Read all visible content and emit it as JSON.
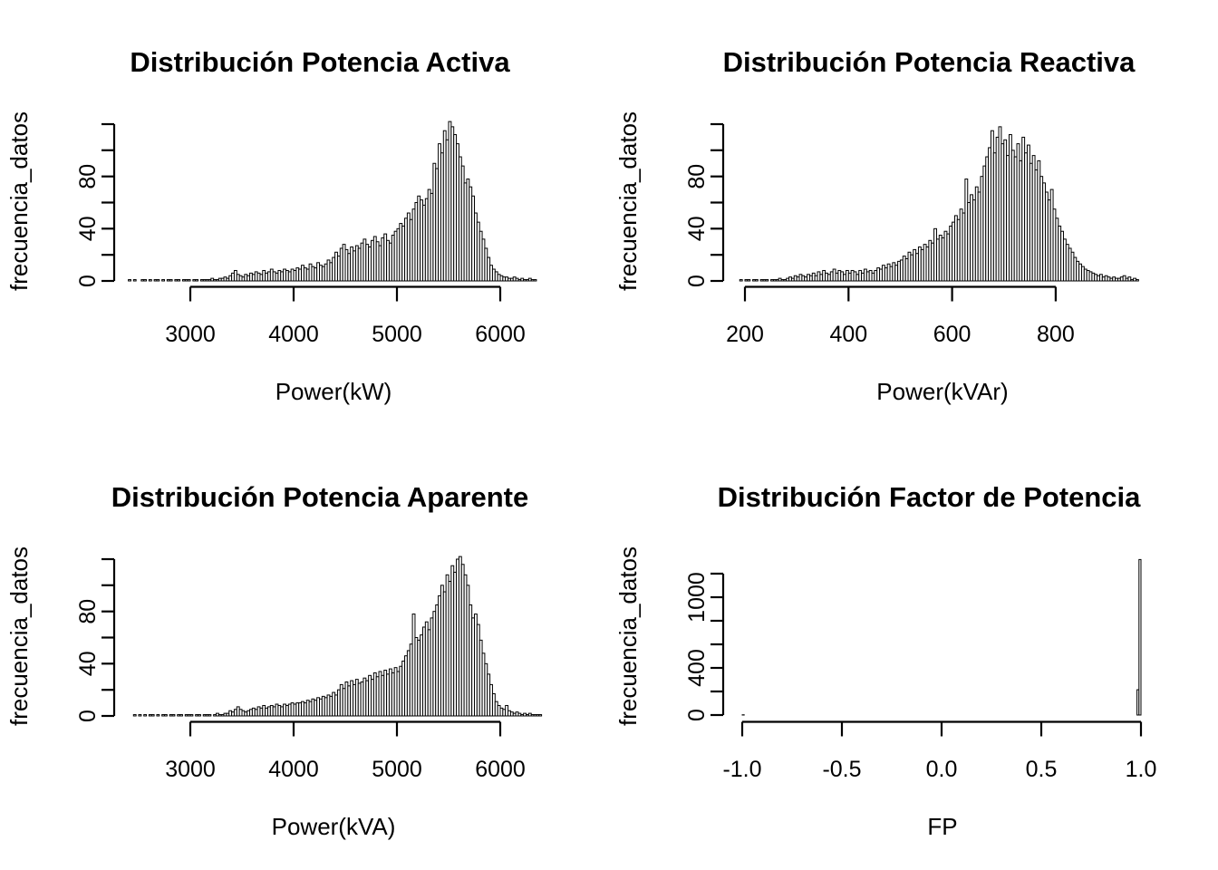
{
  "app": {
    "kind": "r-plot-figure",
    "background": "#ffffff",
    "foreground": "#000000",
    "grid_rows": 2,
    "grid_cols": 2
  },
  "chart_data": [
    {
      "type": "bar",
      "variant": "histogram",
      "title": "Distribución Potencia Activa",
      "xlabel": "Power(kW)",
      "ylabel": "frecuencia_datos",
      "x_ticks": [
        3000,
        4000,
        5000,
        6000
      ],
      "x_tick_labels": [
        "3000",
        "4000",
        "5000",
        "6000"
      ],
      "y_ticks": [
        0,
        20,
        40,
        60,
        80,
        100,
        120
      ],
      "y_tick_labels": [
        "0",
        "",
        "40",
        "",
        "80",
        "",
        ""
      ],
      "xlim": [
        2400,
        6350
      ],
      "ylim": [
        0,
        122
      ],
      "grid": false,
      "legend": false,
      "bin_start": 2400,
      "bin_width": 25,
      "heights": [
        1,
        0,
        1,
        0,
        0,
        1,
        1,
        0,
        1,
        0,
        1,
        1,
        0,
        1,
        0,
        1,
        1,
        0,
        1,
        1,
        0,
        1,
        1,
        1,
        0,
        1,
        1,
        0,
        1,
        1,
        1,
        1,
        2,
        1,
        1,
        2,
        2,
        3,
        2,
        4,
        6,
        8,
        5,
        4,
        3,
        5,
        4,
        6,
        5,
        7,
        6,
        5,
        8,
        6,
        7,
        9,
        7,
        6,
        8,
        7,
        9,
        8,
        7,
        9,
        8,
        10,
        9,
        12,
        10,
        9,
        13,
        11,
        10,
        14,
        12,
        11,
        13,
        16,
        14,
        18,
        22,
        19,
        25,
        28,
        24,
        21,
        26,
        23,
        27,
        25,
        29,
        32,
        28,
        26,
        31,
        34,
        30,
        27,
        33,
        36,
        31,
        29,
        35,
        38,
        40,
        44,
        42,
        48,
        52,
        47,
        55,
        60,
        65,
        62,
        58,
        63,
        70,
        67,
        90,
        86,
        105,
        98,
        115,
        108,
        122,
        118,
        112,
        105,
        95,
        88,
        75,
        78,
        72,
        65,
        52,
        45,
        38,
        32,
        25,
        18,
        12,
        9,
        7,
        5,
        4,
        3,
        3,
        2,
        2,
        3,
        2,
        1,
        2,
        1,
        1,
        2,
        1,
        1
      ]
    },
    {
      "type": "bar",
      "variant": "histogram",
      "title": "Distribución Potencia Reactiva",
      "xlabel": "Power(kVAr)",
      "ylabel": "frecuencia_datos",
      "x_ticks": [
        200,
        400,
        600,
        800
      ],
      "x_tick_labels": [
        "200",
        "400",
        "600",
        "800"
      ],
      "y_ticks": [
        0,
        20,
        40,
        60,
        80,
        100,
        120
      ],
      "y_tick_labels": [
        "0",
        "",
        "40",
        "",
        "80",
        "",
        ""
      ],
      "xlim": [
        190,
        960
      ],
      "ylim": [
        0,
        118
      ],
      "grid": false,
      "legend": false,
      "bin_start": 190,
      "bin_width": 5,
      "heights": [
        1,
        0,
        1,
        1,
        0,
        1,
        1,
        0,
        1,
        1,
        1,
        0,
        1,
        1,
        1,
        2,
        1,
        1,
        2,
        3,
        2,
        4,
        3,
        5,
        4,
        3,
        5,
        4,
        6,
        4,
        7,
        5,
        8,
        6,
        5,
        7,
        9,
        6,
        8,
        7,
        5,
        8,
        6,
        8,
        7,
        5,
        8,
        6,
        9,
        7,
        8,
        6,
        8,
        10,
        9,
        12,
        10,
        13,
        11,
        14,
        12,
        15,
        16,
        19,
        17,
        22,
        20,
        24,
        21,
        26,
        24,
        28,
        26,
        31,
        29,
        40,
        32,
        35,
        33,
        38,
        36,
        42,
        45,
        50,
        47,
        55,
        52,
        78,
        60,
        66,
        62,
        72,
        68,
        80,
        88,
        95,
        102,
        115,
        98,
        110,
        118,
        105,
        108,
        96,
        112,
        100,
        95,
        105,
        92,
        110,
        98,
        104,
        90,
        96,
        85,
        92,
        80,
        75,
        68,
        62,
        70,
        55,
        48,
        42,
        38,
        32,
        28,
        25,
        22,
        18,
        15,
        13,
        11,
        9,
        8,
        7,
        6,
        5,
        4,
        5,
        3,
        4,
        3,
        2,
        3,
        2,
        2,
        3,
        4,
        2,
        3,
        1,
        2,
        1
      ]
    },
    {
      "type": "bar",
      "variant": "histogram",
      "title": "Distribución Potencia Aparente",
      "xlabel": "Power(kVA)",
      "ylabel": "frecuencia_datos",
      "x_ticks": [
        3000,
        4000,
        5000,
        6000
      ],
      "x_tick_labels": [
        "3000",
        "4000",
        "5000",
        "6000"
      ],
      "y_ticks": [
        0,
        20,
        40,
        60,
        80,
        100,
        120
      ],
      "y_tick_labels": [
        "0",
        "",
        "40",
        "",
        "80",
        "",
        ""
      ],
      "xlim": [
        2450,
        6400
      ],
      "ylim": [
        0,
        122
      ],
      "grid": false,
      "legend": false,
      "bin_start": 2450,
      "bin_width": 25,
      "heights": [
        1,
        0,
        1,
        0,
        1,
        0,
        1,
        1,
        0,
        1,
        0,
        1,
        1,
        0,
        1,
        1,
        0,
        1,
        1,
        0,
        1,
        1,
        1,
        0,
        1,
        1,
        0,
        1,
        1,
        1,
        0,
        1,
        2,
        1,
        1,
        2,
        2,
        4,
        3,
        5,
        7,
        5,
        4,
        3,
        4,
        5,
        6,
        5,
        7,
        6,
        8,
        6,
        7,
        8,
        7,
        9,
        8,
        7,
        9,
        8,
        9,
        10,
        9,
        10,
        10,
        11,
        10,
        12,
        11,
        13,
        12,
        14,
        13,
        15,
        14,
        16,
        15,
        18,
        16,
        20,
        24,
        21,
        26,
        23,
        27,
        24,
        28,
        25,
        26,
        29,
        27,
        31,
        28,
        33,
        30,
        34,
        31,
        35,
        32,
        36,
        33,
        37,
        34,
        38,
        42,
        46,
        50,
        55,
        78,
        60,
        58,
        62,
        68,
        72,
        66,
        75,
        80,
        85,
        92,
        100,
        95,
        108,
        103,
        115,
        110,
        120,
        122,
        116,
        108,
        100,
        85,
        75,
        78,
        70,
        58,
        48,
        40,
        32,
        24,
        17,
        11,
        8,
        6,
        5,
        8,
        4,
        3,
        2,
        3,
        2,
        1,
        2,
        1,
        2,
        1,
        1,
        1,
        1
      ]
    },
    {
      "type": "bar",
      "variant": "histogram",
      "title": "Distribución Factor de Potencia",
      "xlabel": "FP",
      "ylabel": "frecuencia_datos",
      "x_ticks": [
        -1,
        -0.5,
        0,
        0.5,
        1
      ],
      "x_tick_labels": [
        "-1.0",
        "-0.5",
        "0.0",
        "0.5",
        "1.0"
      ],
      "y_ticks": [
        0,
        200,
        400,
        600,
        800,
        1000,
        1200
      ],
      "y_tick_labels": [
        "0",
        "",
        "400",
        "",
        "",
        "1000",
        ""
      ],
      "xlim": [
        -1,
        1
      ],
      "ylim": [
        0,
        1320
      ],
      "grid": false,
      "legend": false,
      "bin_width": 0.01,
      "bars": [
        [
          -1.0,
          2
        ],
        [
          0.98,
          215
        ],
        [
          0.99,
          1320
        ]
      ]
    }
  ]
}
